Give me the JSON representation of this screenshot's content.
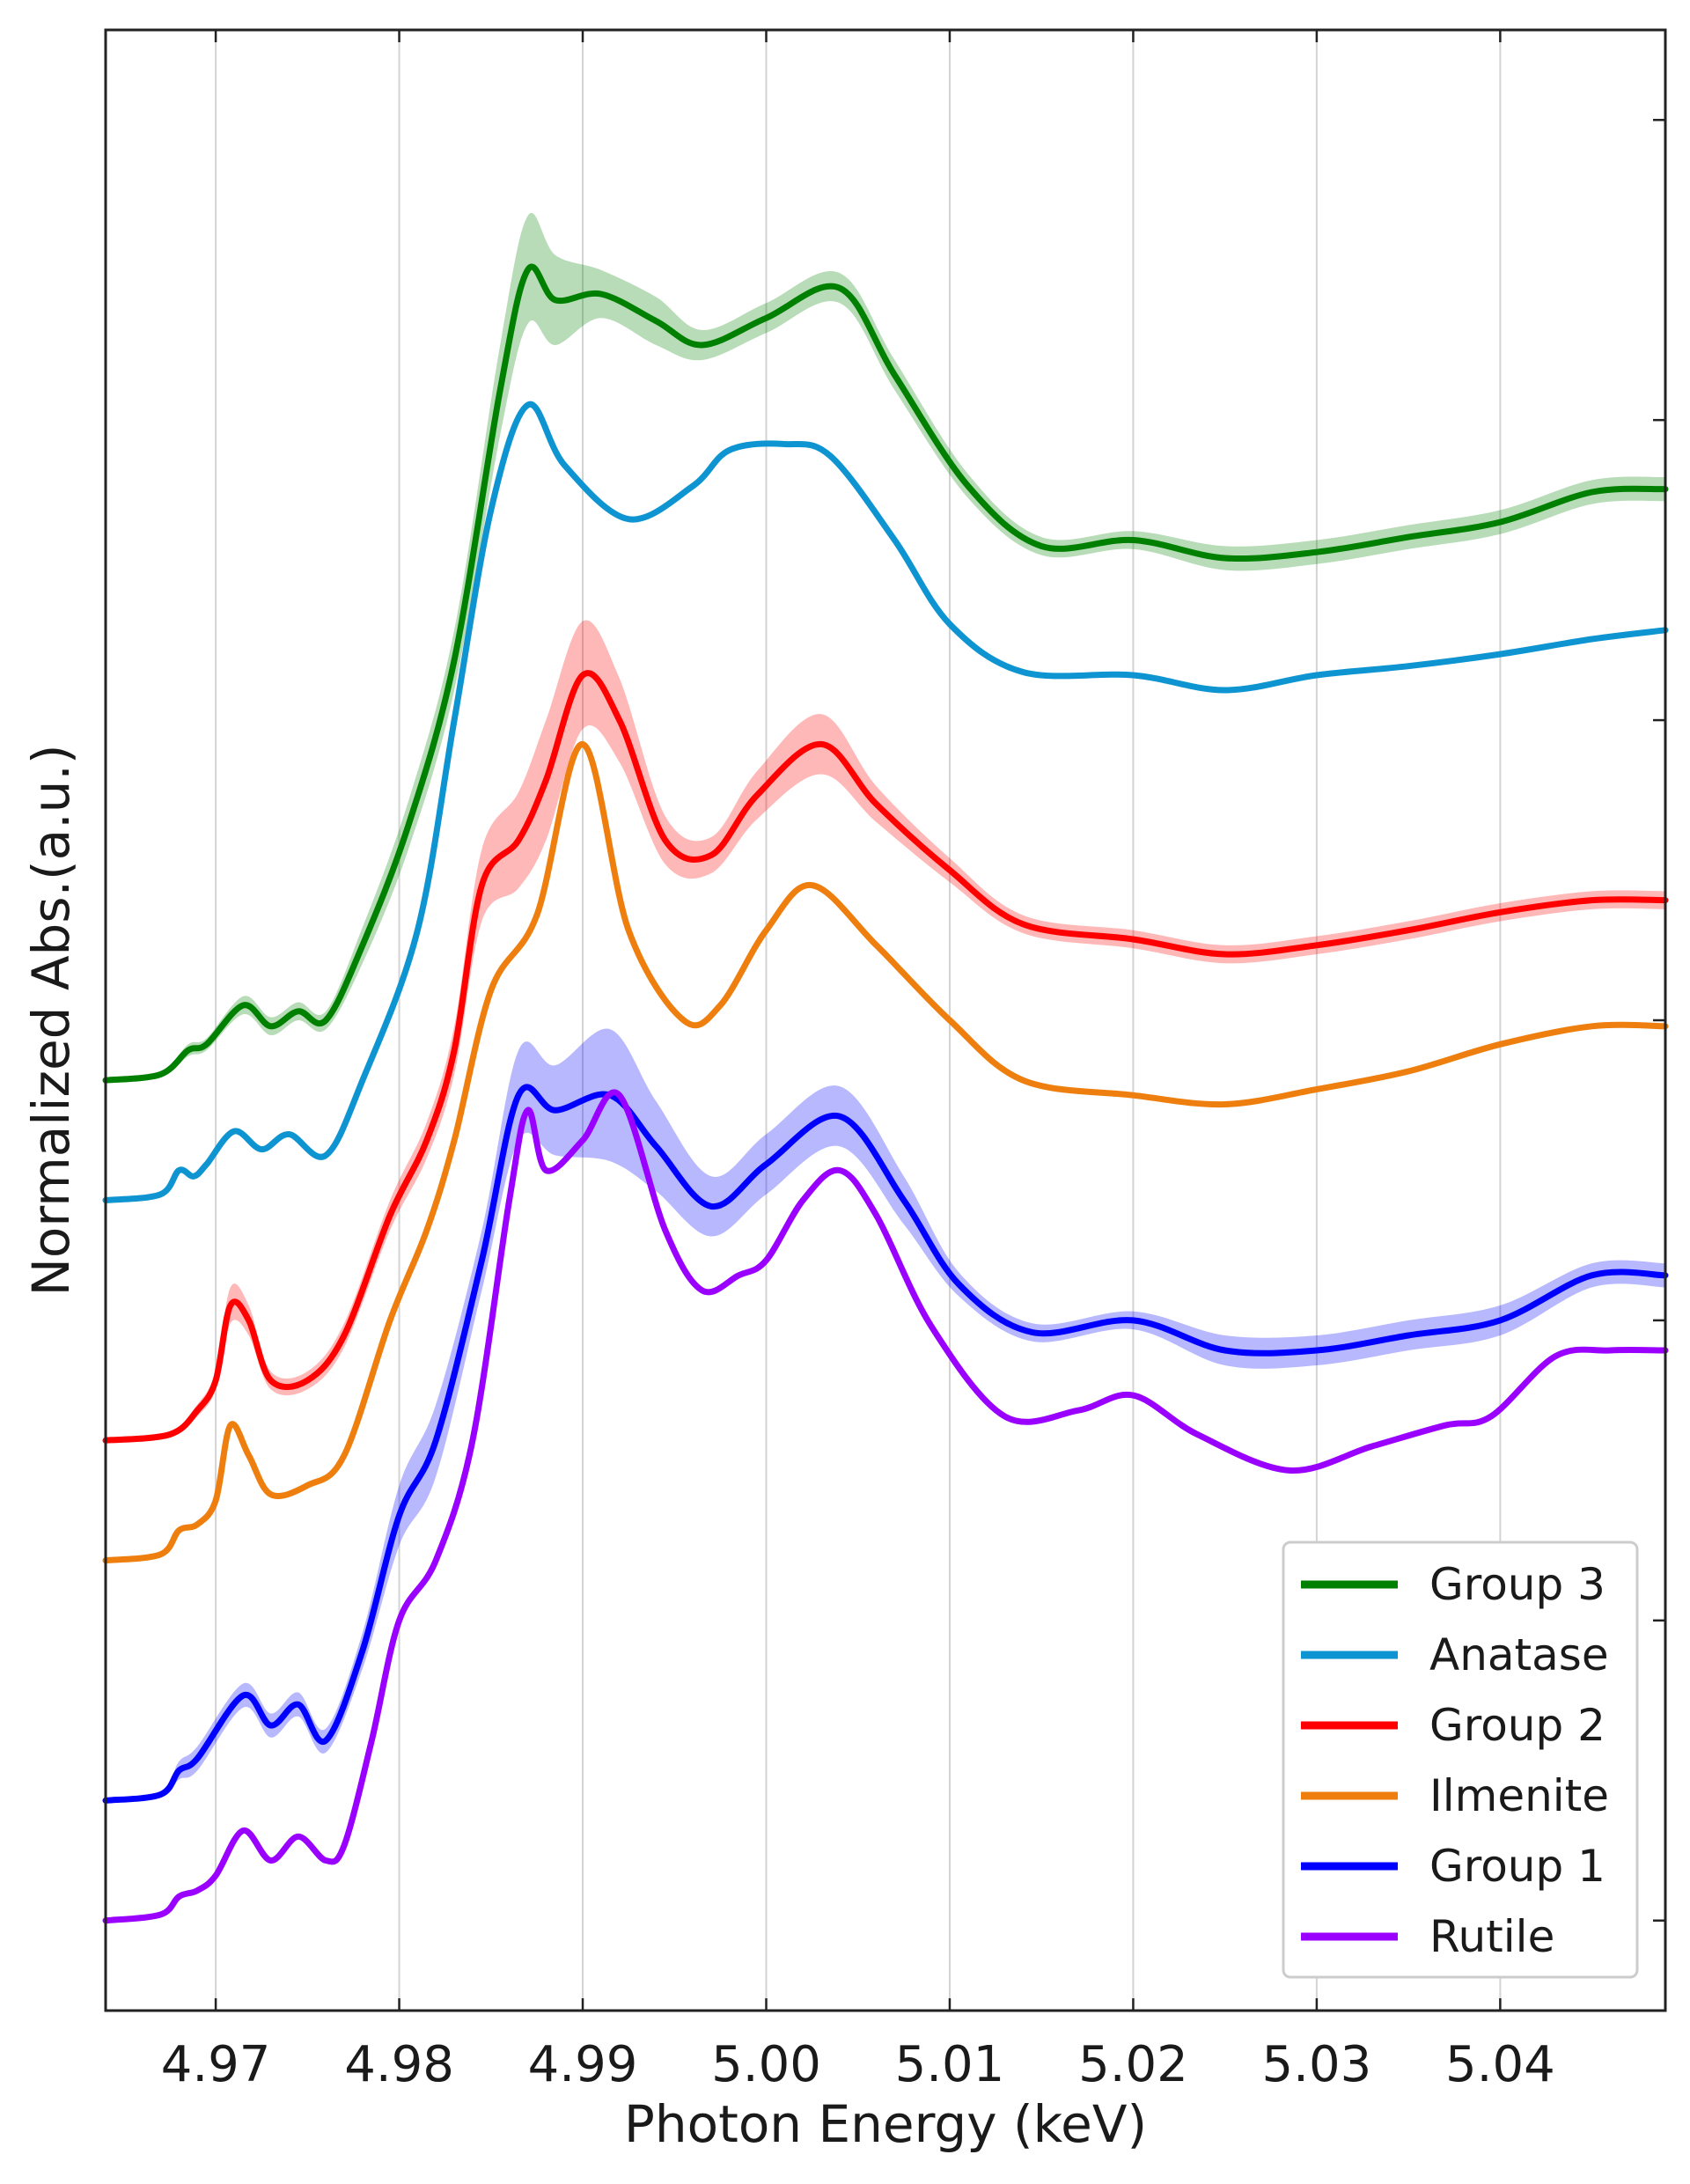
{
  "chart_data": {
    "type": "line",
    "title": "",
    "xlabel": "Photon Energy (keV)",
    "ylabel": "Normalized Abs.(a.u.)",
    "xlim": [
      4.964,
      5.049
    ],
    "ylim": [
      0,
      6.6
    ],
    "x_ticks": [
      4.97,
      4.98,
      4.99,
      5.0,
      5.01,
      5.02,
      5.03,
      5.04
    ],
    "x_tick_labels": [
      "4.97",
      "4.98",
      "4.99",
      "5.00",
      "5.01",
      "5.02",
      "5.03",
      "5.04"
    ],
    "y_ticks": [
      0.3,
      1.3,
      2.3,
      3.3,
      4.3,
      5.3,
      6.3
    ],
    "y_tick_labels_shown": false,
    "grid": "vertical",
    "legend_position": "lower-right",
    "series": [
      {
        "name": "Group 3",
        "color": "#008000",
        "band": true,
        "x": [
          4.964,
          4.967,
          4.9685,
          4.9695,
          4.9715,
          4.973,
          4.9745,
          4.976,
          4.978,
          4.9805,
          4.983,
          4.9855,
          4.987,
          4.9885,
          4.991,
          4.994,
          4.9965,
          5.0,
          5.004,
          5.007,
          5.011,
          5.015,
          5.02,
          5.025,
          5.03,
          5.035,
          5.04,
          5.045,
          5.049
        ],
        "y": [
          3.1,
          3.12,
          3.2,
          3.22,
          3.35,
          3.28,
          3.33,
          3.3,
          3.55,
          3.95,
          4.5,
          5.4,
          5.8,
          5.7,
          5.72,
          5.63,
          5.55,
          5.64,
          5.74,
          5.45,
          5.08,
          4.88,
          4.9,
          4.84,
          4.86,
          4.91,
          4.96,
          5.06,
          5.07
        ],
        "band_halfwidth": [
          0.01,
          0.01,
          0.02,
          0.02,
          0.03,
          0.03,
          0.03,
          0.03,
          0.06,
          0.08,
          0.1,
          0.15,
          0.18,
          0.15,
          0.08,
          0.08,
          0.05,
          0.05,
          0.05,
          0.05,
          0.04,
          0.03,
          0.03,
          0.04,
          0.04,
          0.04,
          0.04,
          0.04,
          0.04
        ]
      },
      {
        "name": "Anatase",
        "color": "#0e95d1",
        "band": false,
        "x": [
          4.964,
          4.967,
          4.968,
          4.9688,
          4.9695,
          4.971,
          4.9725,
          4.974,
          4.976,
          4.978,
          4.981,
          4.983,
          4.985,
          4.987,
          4.989,
          4.9925,
          4.996,
          4.998,
          5.001,
          5.0035,
          5.007,
          5.01,
          5.014,
          5.02,
          5.025,
          5.03,
          5.035,
          5.04,
          5.045,
          5.049
        ],
        "y": [
          2.7,
          2.72,
          2.8,
          2.78,
          2.82,
          2.93,
          2.87,
          2.92,
          2.85,
          3.1,
          3.6,
          4.3,
          5.0,
          5.35,
          5.15,
          4.97,
          5.08,
          5.2,
          5.22,
          5.18,
          4.9,
          4.62,
          4.46,
          4.45,
          4.4,
          4.45,
          4.48,
          4.52,
          4.57,
          4.6
        ]
      },
      {
        "name": "Group 2",
        "color": "#ff0000",
        "band": true,
        "x": [
          4.964,
          4.9675,
          4.969,
          4.97,
          4.9708,
          4.9718,
          4.973,
          4.975,
          4.977,
          4.9795,
          4.9815,
          4.983,
          4.9845,
          4.9865,
          4.988,
          4.99,
          4.992,
          4.9945,
          4.997,
          4.9995,
          5.003,
          5.006,
          5.01,
          5.014,
          5.02,
          5.025,
          5.03,
          5.035,
          5.04,
          5.045,
          5.049
        ],
        "y": [
          1.9,
          1.92,
          2.0,
          2.1,
          2.35,
          2.3,
          2.1,
          2.1,
          2.25,
          2.65,
          2.9,
          3.2,
          3.75,
          3.9,
          4.1,
          4.45,
          4.3,
          3.9,
          3.85,
          4.05,
          4.22,
          4.02,
          3.8,
          3.62,
          3.57,
          3.52,
          3.55,
          3.6,
          3.66,
          3.7,
          3.7
        ],
        "band_halfwidth": [
          0.01,
          0.01,
          0.02,
          0.03,
          0.06,
          0.05,
          0.03,
          0.03,
          0.04,
          0.05,
          0.06,
          0.08,
          0.12,
          0.16,
          0.2,
          0.18,
          0.14,
          0.08,
          0.06,
          0.08,
          0.1,
          0.06,
          0.04,
          0.03,
          0.03,
          0.03,
          0.03,
          0.03,
          0.03,
          0.03,
          0.03
        ]
      },
      {
        "name": "Ilmenite",
        "color": "#ee7f0e",
        "band": false,
        "x": [
          4.964,
          4.967,
          4.968,
          4.969,
          4.97,
          4.9708,
          4.9718,
          4.973,
          4.975,
          4.977,
          4.9795,
          4.9815,
          4.983,
          4.985,
          4.9875,
          4.99,
          4.9925,
          4.9955,
          4.9975,
          5.0,
          5.0025,
          5.006,
          5.01,
          5.014,
          5.02,
          5.025,
          5.03,
          5.035,
          5.04,
          5.045,
          5.049
        ],
        "y": [
          1.5,
          1.52,
          1.6,
          1.62,
          1.7,
          1.95,
          1.85,
          1.72,
          1.75,
          1.85,
          2.3,
          2.6,
          2.9,
          3.4,
          3.65,
          4.22,
          3.6,
          3.3,
          3.35,
          3.6,
          3.75,
          3.55,
          3.3,
          3.1,
          3.05,
          3.02,
          3.07,
          3.13,
          3.22,
          3.28,
          3.28
        ]
      },
      {
        "name": "Group 1",
        "color": "#0000ff",
        "band": true,
        "x": [
          4.964,
          4.967,
          4.968,
          4.969,
          4.9715,
          4.973,
          4.9745,
          4.976,
          4.978,
          4.98,
          4.982,
          4.9845,
          4.9865,
          4.9885,
          4.9915,
          4.994,
          4.997,
          5.0,
          5.004,
          5.0075,
          5.0105,
          5.0145,
          5.02,
          5.025,
          5.03,
          5.035,
          5.04,
          5.045,
          5.049
        ],
        "y": [
          0.7,
          0.72,
          0.8,
          0.84,
          1.05,
          0.95,
          1.02,
          0.9,
          1.2,
          1.65,
          1.9,
          2.5,
          3.05,
          3.0,
          3.05,
          2.88,
          2.68,
          2.82,
          2.98,
          2.7,
          2.42,
          2.26,
          2.3,
          2.2,
          2.2,
          2.25,
          2.3,
          2.45,
          2.45
        ],
        "band_halfwidth": [
          0.01,
          0.01,
          0.03,
          0.04,
          0.04,
          0.04,
          0.04,
          0.04,
          0.06,
          0.1,
          0.12,
          0.1,
          0.15,
          0.15,
          0.22,
          0.15,
          0.1,
          0.1,
          0.1,
          0.08,
          0.04,
          0.03,
          0.03,
          0.05,
          0.05,
          0.05,
          0.05,
          0.04,
          0.04
        ]
      },
      {
        "name": "Rutile",
        "color": "#9a00ff",
        "band": false,
        "x": [
          4.964,
          4.967,
          4.968,
          4.969,
          4.97,
          4.9715,
          4.973,
          4.9745,
          4.976,
          4.977,
          4.9785,
          4.98,
          4.982,
          4.984,
          4.986,
          4.987,
          4.988,
          4.99,
          4.992,
          4.9945,
          4.9965,
          4.9985,
          5.0,
          5.002,
          5.004,
          5.006,
          5.009,
          5.013,
          5.017,
          5.02,
          5.0235,
          5.0285,
          5.033,
          5.037,
          5.0395,
          5.043,
          5.046,
          5.049
        ],
        "y": [
          0.3,
          0.32,
          0.38,
          0.4,
          0.45,
          0.6,
          0.5,
          0.58,
          0.5,
          0.55,
          0.9,
          1.3,
          1.5,
          1.9,
          2.7,
          3.0,
          2.8,
          2.9,
          3.05,
          2.6,
          2.4,
          2.45,
          2.5,
          2.7,
          2.8,
          2.65,
          2.28,
          1.98,
          2.0,
          2.05,
          1.92,
          1.8,
          1.88,
          1.95,
          1.98,
          2.18,
          2.2,
          2.2
        ]
      }
    ],
    "legend": [
      "Group 3",
      "Anatase",
      "Group 2",
      "Ilmenite",
      "Group 1",
      "Rutile"
    ]
  }
}
